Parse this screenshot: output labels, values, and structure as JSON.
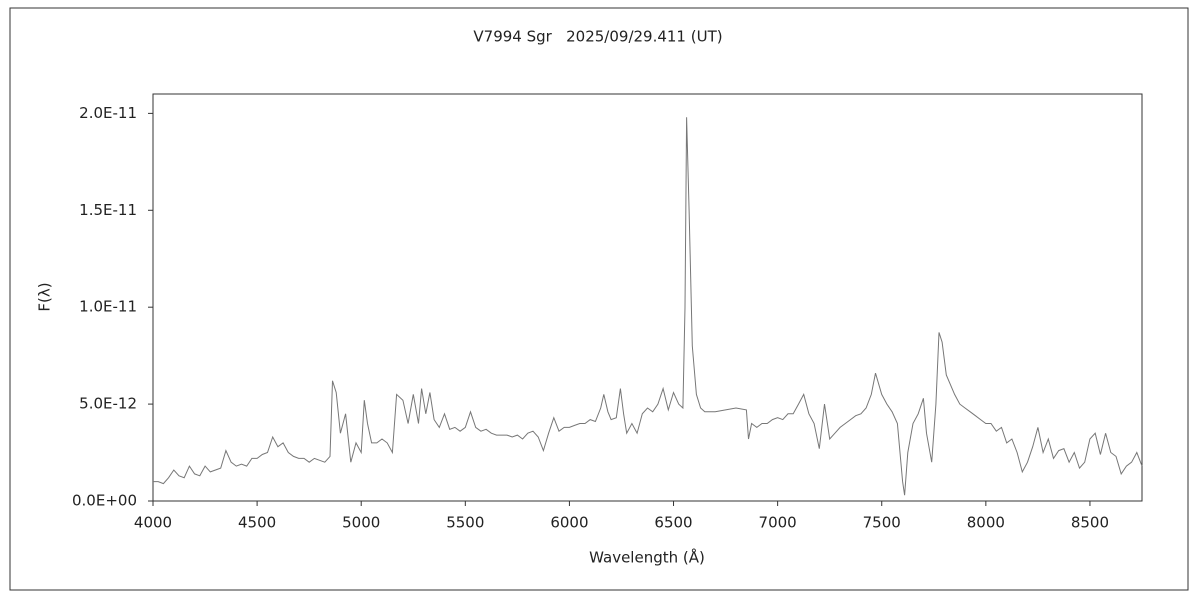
{
  "chart_data": {
    "type": "line",
    "title": "V7994 Sgr   2025/09/29.411 (UT)",
    "xlabel": "Wavelength (Å)",
    "ylabel": "F(λ)",
    "xlim": [
      4000,
      8750
    ],
    "xticks": [
      4000,
      4500,
      5000,
      5500,
      6000,
      6500,
      7000,
      7500,
      8000,
      8500
    ],
    "ylim": [
      0,
      2.1e-11
    ],
    "yticks": [
      {
        "value": 0,
        "label": "0.0E+00"
      },
      {
        "value": 5e-12,
        "label": "5.0E-12"
      },
      {
        "value": 1e-11,
        "label": "1.0E-11"
      },
      {
        "value": 1.5e-11,
        "label": "1.5E-11"
      },
      {
        "value": 2e-11,
        "label": "2.0E-11"
      }
    ],
    "grid": false,
    "series": [
      {
        "color": "#777777",
        "x": [
          4000,
          4025,
          4050,
          4075,
          4100,
          4125,
          4150,
          4175,
          4200,
          4225,
          4250,
          4275,
          4300,
          4325,
          4350,
          4375,
          4400,
          4425,
          4450,
          4475,
          4500,
          4525,
          4550,
          4575,
          4600,
          4625,
          4650,
          4675,
          4700,
          4725,
          4750,
          4775,
          4800,
          4825,
          4850,
          4862,
          4880,
          4900,
          4925,
          4950,
          4975,
          5000,
          5015,
          5030,
          5050,
          5075,
          5100,
          5125,
          5150,
          5170,
          5200,
          5225,
          5250,
          5275,
          5290,
          5310,
          5330,
          5350,
          5375,
          5400,
          5425,
          5450,
          5475,
          5500,
          5525,
          5550,
          5575,
          5600,
          5625,
          5650,
          5675,
          5700,
          5725,
          5750,
          5775,
          5800,
          5825,
          5850,
          5875,
          5900,
          5925,
          5950,
          5975,
          6000,
          6025,
          6050,
          6075,
          6100,
          6125,
          6150,
          6165,
          6185,
          6200,
          6225,
          6245,
          6260,
          6275,
          6300,
          6325,
          6350,
          6375,
          6400,
          6425,
          6450,
          6475,
          6500,
          6525,
          6545,
          6555,
          6563,
          6575,
          6590,
          6610,
          6630,
          6650,
          6700,
          6750,
          6800,
          6850,
          6860,
          6875,
          6900,
          6925,
          6950,
          6975,
          7000,
          7025,
          7050,
          7075,
          7100,
          7125,
          7150,
          7175,
          7200,
          7225,
          7250,
          7275,
          7300,
          7325,
          7350,
          7375,
          7400,
          7425,
          7450,
          7470,
          7500,
          7525,
          7550,
          7575,
          7600,
          7610,
          7625,
          7650,
          7675,
          7700,
          7715,
          7740,
          7760,
          7775,
          7790,
          7810,
          7850,
          7875,
          7900,
          7925,
          7950,
          7975,
          8000,
          8025,
          8050,
          8075,
          8100,
          8125,
          8150,
          8175,
          8200,
          8225,
          8250,
          8275,
          8300,
          8325,
          8350,
          8375,
          8400,
          8425,
          8450,
          8475,
          8500,
          8525,
          8550,
          8575,
          8600,
          8625,
          8650,
          8675,
          8700,
          8725,
          8750
        ],
        "values": [
          1e-12,
          1e-12,
          9e-13,
          1.2e-12,
          1.6e-12,
          1.3e-12,
          1.2e-12,
          1.8e-12,
          1.4e-12,
          1.3e-12,
          1.8e-12,
          1.5e-12,
          1.6e-12,
          1.7e-12,
          2.6e-12,
          2e-12,
          1.8e-12,
          1.9e-12,
          1.8e-12,
          2.2e-12,
          2.2e-12,
          2.4e-12,
          2.5e-12,
          3.3e-12,
          2.8e-12,
          3e-12,
          2.5e-12,
          2.3e-12,
          2.2e-12,
          2.2e-12,
          2e-12,
          2.2e-12,
          2.1e-12,
          2e-12,
          2.3e-12,
          6.2e-12,
          5.6e-12,
          3.5e-12,
          4.5e-12,
          2e-12,
          3e-12,
          2.5e-12,
          5.2e-12,
          4e-12,
          3e-12,
          3e-12,
          3.2e-12,
          3e-12,
          2.5e-12,
          5.5e-12,
          5.2e-12,
          4e-12,
          5.5e-12,
          4e-12,
          5.8e-12,
          4.5e-12,
          5.6e-12,
          4.2e-12,
          3.8e-12,
          4.5e-12,
          3.7e-12,
          3.8e-12,
          3.6e-12,
          3.8e-12,
          4.6e-12,
          3.8e-12,
          3.6e-12,
          3.7e-12,
          3.5e-12,
          3.4e-12,
          3.4e-12,
          3.4e-12,
          3.3e-12,
          3.4e-12,
          3.2e-12,
          3.5e-12,
          3.6e-12,
          3.3e-12,
          2.6e-12,
          3.5e-12,
          4.3e-12,
          3.6e-12,
          3.8e-12,
          3.8e-12,
          3.9e-12,
          4e-12,
          4e-12,
          4.2e-12,
          4.1e-12,
          4.8e-12,
          5.5e-12,
          4.6e-12,
          4.2e-12,
          4.3e-12,
          5.8e-12,
          4.5e-12,
          3.5e-12,
          4e-12,
          3.5e-12,
          4.5e-12,
          4.8e-12,
          4.6e-12,
          5e-12,
          5.8e-12,
          4.7e-12,
          5.6e-12,
          5e-12,
          4.8e-12,
          1e-11,
          1.98e-11,
          1.5e-11,
          8e-12,
          5.5e-12,
          4.8e-12,
          4.6e-12,
          4.6e-12,
          4.7e-12,
          4.8e-12,
          4.7e-12,
          3.2e-12,
          4e-12,
          3.8e-12,
          4e-12,
          4e-12,
          4.2e-12,
          4.3e-12,
          4.2e-12,
          4.5e-12,
          4.5e-12,
          5e-12,
          5.5e-12,
          4.5e-12,
          4e-12,
          2.7e-12,
          5e-12,
          3.2e-12,
          3.5e-12,
          3.8e-12,
          4e-12,
          4.2e-12,
          4.4e-12,
          4.5e-12,
          4.8e-12,
          5.5e-12,
          6.6e-12,
          5.5e-12,
          5e-12,
          4.6e-12,
          4e-12,
          1e-12,
          3e-13,
          2.5e-12,
          4e-12,
          4.5e-12,
          5.3e-12,
          3.5e-12,
          2e-12,
          5e-12,
          8.7e-12,
          8.2e-12,
          6.5e-12,
          5.5e-12,
          5e-12,
          4.8e-12,
          4.6e-12,
          4.4e-12,
          4.2e-12,
          4e-12,
          4e-12,
          3.6e-12,
          3.8e-12,
          3e-12,
          3.2e-12,
          2.5e-12,
          1.5e-12,
          2e-12,
          2.8e-12,
          3.8e-12,
          2.5e-12,
          3.2e-12,
          2.2e-12,
          2.6e-12,
          2.7e-12,
          2e-12,
          2.5e-12,
          1.7e-12,
          2e-12,
          3.2e-12,
          3.5e-12,
          2.4e-12,
          3.5e-12,
          2.5e-12,
          2.3e-12,
          1.4e-12,
          1.8e-12,
          2e-12,
          2.5e-12,
          1.8e-12
        ]
      }
    ]
  }
}
